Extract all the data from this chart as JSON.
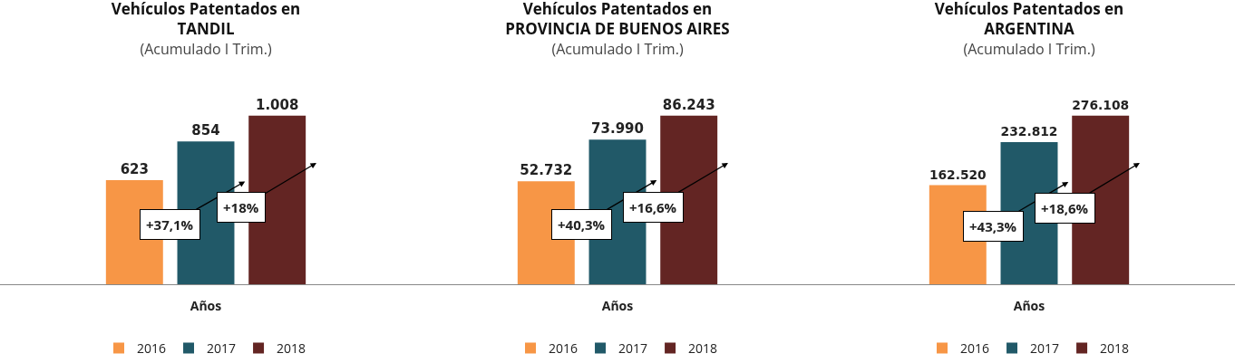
{
  "chart_data": [
    {
      "type": "bar",
      "title": "Vehículos Patentados en\nTANDIL",
      "subtitle": "(Acumulado I Trim.)",
      "xlabel": "Años",
      "categories": [
        null
      ],
      "legend": "bottom",
      "annotations": [
        "+37,1%",
        "+18%"
      ],
      "series": [
        {
          "name": "2016",
          "color": "#f79646",
          "values": [
            623
          ],
          "value_labels": [
            "623"
          ]
        },
        {
          "name": "2017",
          "color": "#215968",
          "values": [
            854
          ],
          "value_labels": [
            "854"
          ]
        },
        {
          "name": "2018",
          "color": "#632523",
          "values": [
            1008
          ],
          "value_labels": [
            "1.008"
          ]
        }
      ]
    },
    {
      "type": "bar",
      "title": "Vehículos Patentados en\nPROVINCIA DE BUENOS AIRES",
      "subtitle": "(Acumulado I Trim.)",
      "xlabel": "Años",
      "categories": [
        null
      ],
      "legend": "bottom",
      "annotations": [
        "+40,3%",
        "+16,6%"
      ],
      "series": [
        {
          "name": "2016",
          "color": "#f79646",
          "values": [
            52732
          ],
          "value_labels": [
            "52.732"
          ]
        },
        {
          "name": "2017",
          "color": "#215968",
          "values": [
            73990
          ],
          "value_labels": [
            "73.990"
          ]
        },
        {
          "name": "2018",
          "color": "#632523",
          "values": [
            86243
          ],
          "value_labels": [
            "86.243"
          ]
        }
      ]
    },
    {
      "type": "bar",
      "title": "Vehículos Patentados en\nARGENTINA",
      "subtitle": "(Acumulado I Trim.)",
      "xlabel": "Años",
      "categories": [
        null
      ],
      "legend": "bottom",
      "annotations": [
        "+43,3%",
        "+18,6%"
      ],
      "series": [
        {
          "name": "2016",
          "color": "#f79646",
          "values": [
            162520
          ],
          "value_labels": [
            "162.520"
          ]
        },
        {
          "name": "2017",
          "color": "#215968",
          "values": [
            232812
          ],
          "value_labels": [
            "232.812"
          ]
        },
        {
          "name": "2018",
          "color": "#632523",
          "values": [
            276108
          ],
          "value_labels": [
            "276.108"
          ]
        }
      ]
    }
  ]
}
